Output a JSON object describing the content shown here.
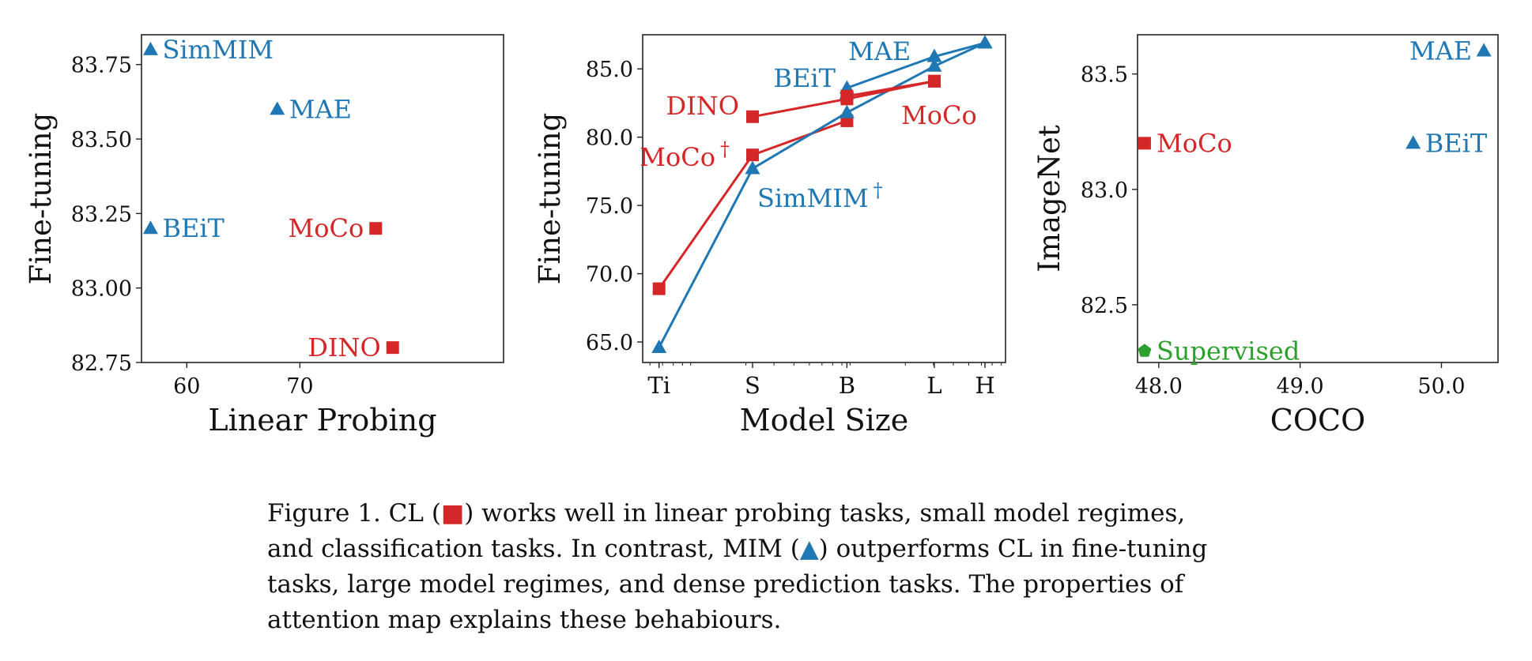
{
  "colors": {
    "cl": "#d62728",
    "mim": "#1f77b4",
    "supervised": "#2ca02c",
    "axis": "#222222"
  },
  "chart_data": [
    {
      "type": "scatter",
      "xlabel": "Linear Probing",
      "ylabel": "Fine-tuning",
      "xlim": [
        56,
        88
      ],
      "ylim": [
        82.75,
        83.85
      ],
      "xticks": [
        60,
        70
      ],
      "xtick_labels": [
        "60",
        "70"
      ],
      "yticks": [
        82.75,
        83.0,
        83.25,
        83.5,
        83.75
      ],
      "ytick_labels": [
        "82.75",
        "83.00",
        "83.25",
        "83.50",
        "83.75"
      ],
      "grid": false,
      "points": [
        {
          "label": "SimMIM",
          "x": 56.8,
          "y": 83.8,
          "marker": "triangle",
          "group": "mim",
          "label_side": "right"
        },
        {
          "label": "MAE",
          "x": 68.0,
          "y": 83.6,
          "marker": "triangle",
          "group": "mim",
          "label_side": "right"
        },
        {
          "label": "BEiT",
          "x": 56.8,
          "y": 83.2,
          "marker": "triangle",
          "group": "mim",
          "label_side": "right"
        },
        {
          "label": "MoCo",
          "x": 76.7,
          "y": 83.2,
          "marker": "square",
          "group": "cl",
          "label_side": "left"
        },
        {
          "label": "DINO",
          "x": 78.2,
          "y": 82.8,
          "marker": "square",
          "group": "cl",
          "label_side": "left"
        }
      ]
    },
    {
      "type": "line",
      "xlabel": "Model Size",
      "ylabel": "Fine-tuning",
      "x_scale": "log",
      "categories": [
        "Ti",
        "S",
        "B",
        "L",
        "H"
      ],
      "ylim": [
        63.5,
        87.5
      ],
      "yticks": [
        65.0,
        70.0,
        75.0,
        80.0,
        85.0
      ],
      "ytick_labels": [
        "65.0",
        "70.0",
        "75.0",
        "80.0",
        "85.0"
      ],
      "grid": false,
      "series": [
        {
          "name": "MoCo",
          "dagger": "†",
          "group": "cl",
          "marker": "square",
          "x": [
            "Ti",
            "S",
            "B"
          ],
          "values": [
            68.9,
            78.7,
            81.2
          ]
        },
        {
          "name": "SimMIM",
          "dagger": "†",
          "group": "mim",
          "marker": "triangle",
          "x": [
            "Ti",
            "S",
            "B",
            "L",
            "H"
          ],
          "values": [
            64.6,
            77.7,
            81.8,
            85.2,
            86.9
          ]
        },
        {
          "name": "DINO",
          "dagger": "",
          "group": "cl",
          "marker": "square",
          "x": [
            "S",
            "B",
            "L"
          ],
          "values": [
            81.5,
            82.8,
            84.1
          ]
        },
        {
          "name": "BEiT",
          "dagger": "",
          "group": "mim",
          "marker": "triangle",
          "x": [
            "B"
          ],
          "values": [
            83.2
          ]
        },
        {
          "name": "MAE",
          "dagger": "",
          "group": "mim",
          "marker": "triangle",
          "x": [
            "B",
            "L",
            "H"
          ],
          "values": [
            83.6,
            85.9,
            86.9
          ]
        },
        {
          "name": "MoCo",
          "dagger": "",
          "group": "cl",
          "marker": "square",
          "x": [
            "B",
            "L"
          ],
          "values": [
            83.0,
            84.1
          ]
        }
      ]
    },
    {
      "type": "scatter",
      "xlabel": "COCO",
      "ylabel": "ImageNet",
      "xlim": [
        47.85,
        50.4
      ],
      "ylim": [
        82.25,
        83.67
      ],
      "xticks": [
        48.0,
        49.0,
        50.0
      ],
      "xtick_labels": [
        "48.0",
        "49.0",
        "50.0"
      ],
      "yticks": [
        82.5,
        83.0,
        83.5
      ],
      "ytick_labels": [
        "82.5",
        "83.0",
        "83.5"
      ],
      "grid": false,
      "points": [
        {
          "label": "MAE",
          "x": 50.3,
          "y": 83.6,
          "marker": "triangle",
          "group": "mim",
          "label_side": "left"
        },
        {
          "label": "MoCo",
          "x": 47.9,
          "y": 83.2,
          "marker": "square",
          "group": "cl",
          "label_side": "right"
        },
        {
          "label": "BEiT",
          "x": 49.8,
          "y": 83.2,
          "marker": "triangle",
          "group": "mim",
          "label_side": "right"
        },
        {
          "label": "Supervised",
          "x": 47.9,
          "y": 82.3,
          "marker": "pentagon",
          "group": "supervised",
          "label_side": "right"
        }
      ]
    }
  ],
  "caption": {
    "line1_a": "Figure 1. CL (",
    "line1_b": ") works well in linear probing tasks, small model regimes,",
    "line2_a": "and classification tasks. In contrast, MIM (",
    "line2_b": ") outperforms CL in fine-tuning",
    "line3": "tasks, large model regimes, and dense prediction tasks. The properties of",
    "line4": "attention map explains these behabiours.",
    "square_symbol": "■",
    "triangle_symbol": "▲"
  }
}
